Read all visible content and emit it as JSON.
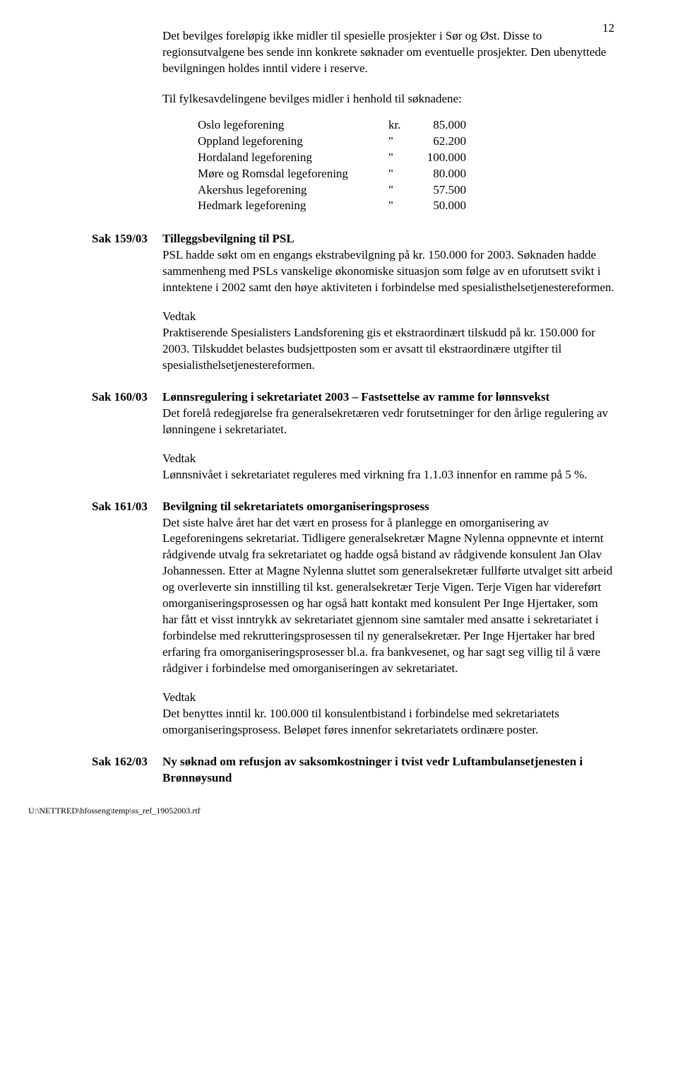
{
  "page_number": "12",
  "intro_text": "Det bevilges foreløpig ikke midler til spesielle prosjekter i Sør og Øst. Disse to regionsutvalgene bes sende inn konkrete søknader om eventuelle prosjekter. Den ubenyttede bevilgningen holdes inntil videre i reserve.",
  "sub_intro": "Til fylkesavdelingene bevilges midler i henhold til søknadene:",
  "allocations": [
    {
      "name": "Oslo legeforening",
      "mark": "kr.",
      "value": "85.000"
    },
    {
      "name": "Oppland legeforening",
      "mark": "\"",
      "value": "62.200"
    },
    {
      "name": "Hordaland legeforening",
      "mark": "\"",
      "value": "100.000"
    },
    {
      "name": "Møre og Romsdal legeforening",
      "mark": "\"",
      "value": "80.000"
    },
    {
      "name": "Akershus legeforening",
      "mark": "\"",
      "value": "57.500"
    },
    {
      "name": "Hedmark legeforening",
      "mark": "\"",
      "value": "50.000"
    }
  ],
  "sak159": {
    "id": "Sak 159/03",
    "title": "Tilleggsbevilgning til PSL",
    "body": "PSL hadde søkt om en engangs ekstrabevilgning på kr. 150.000 for 2003. Søknaden hadde sammenheng med PSLs vanskelige økonomiske situasjon som følge av en uforutsett svikt i inntektene i 2002 samt den høye aktiviteten i forbindelse med spesialisthelsetjenestereformen.",
    "vedtak_label": "Vedtak",
    "vedtak_body": "Praktiserende Spesialisters Landsforening gis et ekstraordinært tilskudd på kr. 150.000 for 2003. Tilskuddet belastes budsjettposten som er avsatt til ekstraordinære utgifter til spesialisthelsetjenestereformen."
  },
  "sak160": {
    "id": "Sak 160/03",
    "title": "Lønnsregulering i sekretariatet 2003 – Fastsettelse av ramme for lønnsvekst",
    "body": "Det forelå redegjørelse fra generalsekretæren vedr forutsetninger for den årlige regulering av lønningene i sekretariatet.",
    "vedtak_label": "Vedtak",
    "vedtak_body": "Lønnsnivået i sekretariatet reguleres med virkning fra 1.1.03 innenfor en ramme på 5 %."
  },
  "sak161": {
    "id": "Sak 161/03",
    "title": "Bevilgning til sekretariatets omorganiseringsprosess",
    "body": "Det siste halve året har det vært en prosess for å planlegge en omorganisering av Legeforeningens sekretariat. Tidligere generalsekretær Magne Nylenna oppnevnte et internt rådgivende utvalg fra sekretariatet og hadde også bistand av rådgivende konsulent Jan Olav Johannessen. Etter at Magne Nylenna sluttet som generalsekretær fullførte utvalget sitt arbeid og overleverte sin innstilling til kst. generalsekretær Terje Vigen. Terje Vigen har videreført omorganiseringsprosessen og har også hatt kontakt med konsulent Per Inge Hjertaker, som har fått et visst inntrykk av sekretariatet gjennom sine samtaler med ansatte i sekretariatet i forbindelse med rekrutteringsprosessen til ny generalsekretær. Per Inge Hjertaker har bred erfaring fra omorganiseringsprosesser bl.a. fra bankvesenet, og har sagt seg villig til å være rådgiver i forbindelse med omorganiseringen av sekretariatet.",
    "vedtak_label": "Vedtak",
    "vedtak_body": "Det benyttes inntil kr. 100.000 til konsulentbistand i forbindelse med sekretariatets omorganiseringsprosess. Beløpet føres innenfor sekretariatets ordinære poster."
  },
  "sak162": {
    "id": "Sak 162/03",
    "title": "Ny søknad om refusjon av saksomkostninger i tvist vedr Luftambulansetjenesten i Brønnøysund"
  },
  "footer": "U:\\NETTRED\\hfosseng\\temp\\ss_ref_19052003.rtf"
}
